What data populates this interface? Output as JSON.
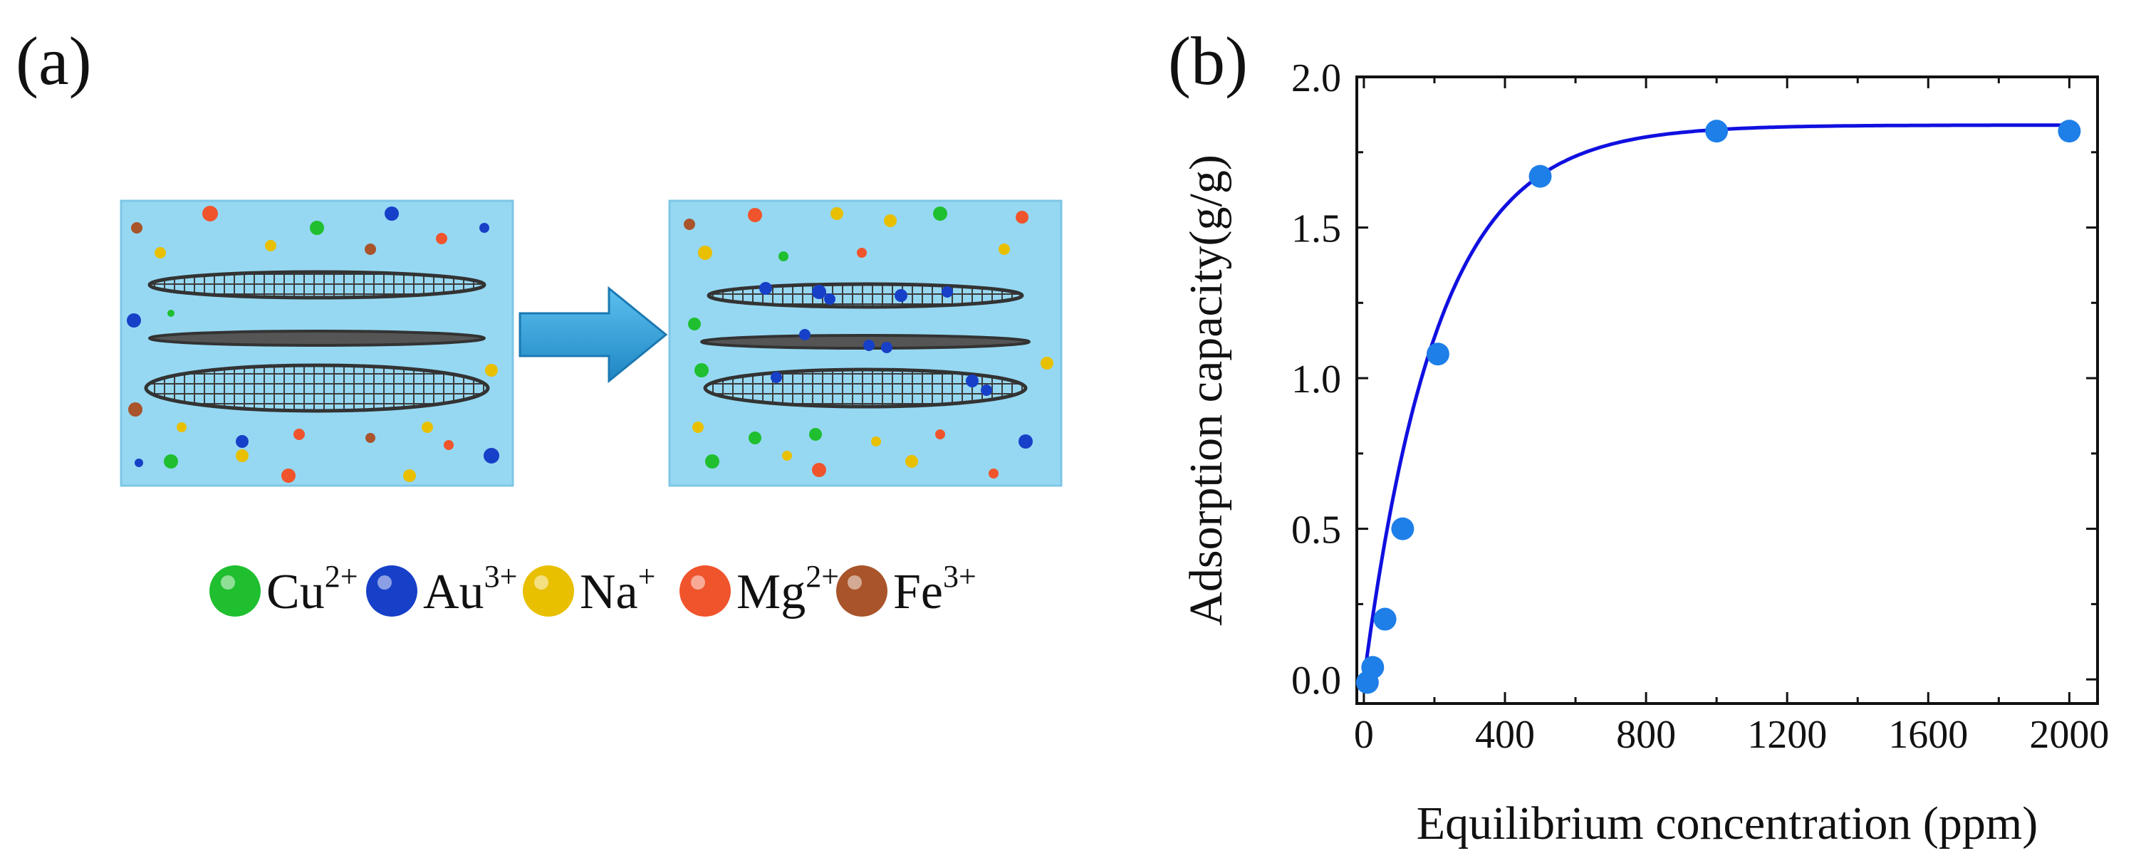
{
  "panels": {
    "a_label": "(a)",
    "b_label": "(b)"
  },
  "scene": {
    "box_color": "#96d8f2",
    "arrow_color": "#2b9fd8",
    "legend": [
      {
        "base": "Cu",
        "sup": "2+",
        "color": "#1fbf2f"
      },
      {
        "base": "Au",
        "sup": "3+",
        "color": "#1740c8"
      },
      {
        "base": "Na",
        "sup": "+",
        "color": "#e8c000"
      },
      {
        "base": "Mg",
        "sup": "2+",
        "color": "#f0542c"
      },
      {
        "base": "Fe",
        "sup": "3+",
        "color": "#a9542a"
      }
    ]
  },
  "chart_data": {
    "type": "scatter",
    "title": "",
    "xlabel": "Equilibrium concentration (ppm)",
    "ylabel": "Adsorption capacity(g/g)",
    "xlim": [
      -20,
      2080
    ],
    "ylim": [
      -0.08,
      2.0
    ],
    "xticks": [
      0,
      400,
      800,
      1200,
      1600,
      2000
    ],
    "xtick_labels": [
      "0",
      "400",
      "800",
      "1200",
      "1600",
      "2000"
    ],
    "yticks": [
      0.0,
      0.5,
      1.0,
      1.5,
      2.0
    ],
    "ytick_labels": [
      "0.0",
      "0.5",
      "1.0",
      "1.5",
      "2.0"
    ],
    "grid": false,
    "series": [
      {
        "name": "data",
        "color": "#1e7fe8",
        "x": [
          10,
          25,
          60,
          110,
          210,
          500,
          1000,
          2000
        ],
        "y": [
          -0.01,
          0.04,
          0.2,
          0.5,
          1.08,
          1.67,
          1.82,
          1.82
        ]
      },
      {
        "name": "fit",
        "type": "line",
        "color": "#1010e0",
        "model": "qmax*(1-exp(-k*x))",
        "qmax": 1.84,
        "k": 0.0048
      }
    ]
  }
}
